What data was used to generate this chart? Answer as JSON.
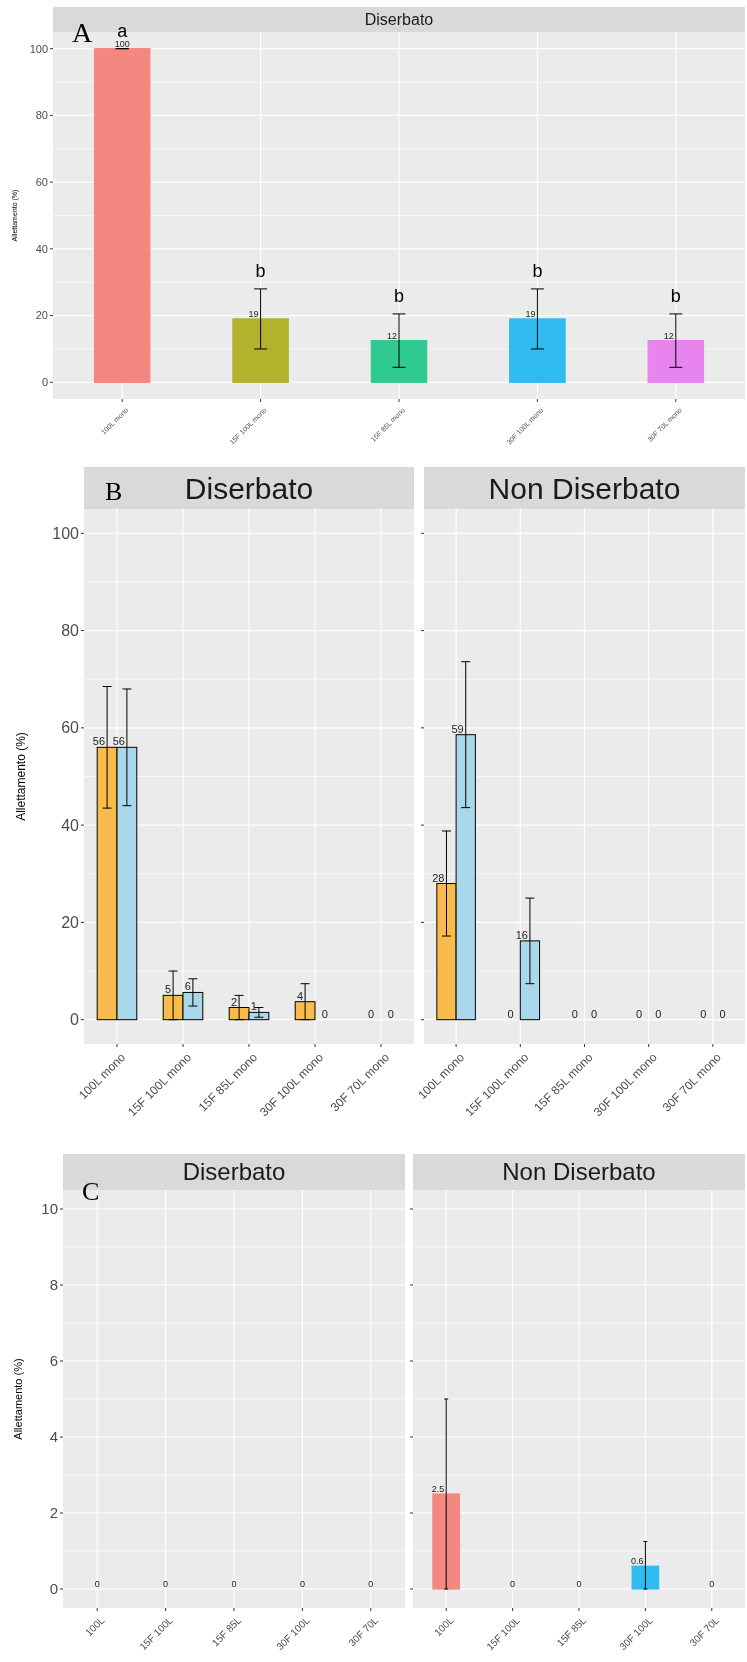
{
  "chart_data": [
    {
      "type": "bar",
      "title": "Diserbato",
      "ylabel": "Allettamento (%)",
      "categories": [
        "100L mono",
        "15F 100L mono",
        "15F 85L mono",
        "30F 100L mono",
        "30F 70L mono"
      ],
      "values": [
        100,
        19,
        12.5,
        19,
        12.5
      ],
      "colors": [
        "#f4877f",
        "#b2b22d",
        "#2fca91",
        "#2fbbf0",
        "#e884ee"
      ],
      "errors": [
        0,
        9,
        8,
        9,
        8
      ],
      "value_labels": [
        "100",
        "19",
        "12",
        "19",
        "12"
      ],
      "ylim": [
        -5,
        105
      ],
      "yticks": [
        0,
        20,
        40,
        60,
        80,
        100
      ],
      "grid": true,
      "annotations": [
        "A",
        {
          "text": "a",
          "x": "100L mono",
          "y": 100
        },
        {
          "text": "b",
          "x": "15F 100L mono",
          "y": 28
        },
        {
          "text": "b",
          "x": "15F 85L mono",
          "y": 20.5
        },
        {
          "text": "b",
          "x": "30F 100L mono",
          "y": 28
        },
        {
          "text": "b",
          "x": "30F 70L mono",
          "y": 20.5
        }
      ]
    },
    {
      "type": "bar",
      "title": "Diserbato",
      "ylabel": "Allettamento (%)",
      "categories": [
        "100L mono",
        "15F 100L mono",
        "15F 85L mono",
        "30F 100L mono",
        "30F 70L mono"
      ],
      "series": [
        {
          "color": "#f9bb4b",
          "values": [
            56,
            5,
            2.5,
            3.7,
            0
          ],
          "errors": [
            12.5,
            5,
            2.5,
            3.7,
            null
          ],
          "value_labels": [
            "56",
            "5",
            "2",
            "4",
            "0"
          ]
        },
        {
          "color": "#a8d8ea",
          "values": [
            56,
            5.6,
            1.5,
            0,
            0
          ],
          "errors": [
            12,
            2.8,
            1,
            null,
            null
          ],
          "value_labels": [
            "56",
            "6",
            "1",
            "0",
            "0"
          ]
        }
      ],
      "ylim": [
        -5,
        105
      ],
      "yticks": [
        0,
        20,
        40,
        60,
        80,
        100
      ],
      "grid": true,
      "annotations": [
        "B"
      ]
    },
    {
      "type": "bar",
      "title": "Non Diserbato",
      "categories": [
        "100L mono",
        "15F 100L mono",
        "15F 85L mono",
        "30F 100L mono",
        "30F 70L mono"
      ],
      "series": [
        {
          "color": "#f9bb4b",
          "values": [
            28,
            0,
            0,
            0,
            0
          ],
          "errors": [
            10.8,
            null,
            null,
            null,
            null
          ],
          "value_labels": [
            "28",
            "0",
            "0",
            "0",
            "0"
          ]
        },
        {
          "color": "#a8d8ea",
          "values": [
            58.6,
            16.2,
            0,
            0,
            0
          ],
          "errors": [
            15,
            8.8,
            null,
            null,
            null
          ],
          "value_labels": [
            "59",
            "16",
            "0",
            "0",
            "0"
          ]
        }
      ],
      "ylim": [
        -5,
        105
      ],
      "yticks": [
        0,
        20,
        40,
        60,
        80,
        100
      ],
      "grid": true,
      "tick_labels": "x"
    },
    {
      "type": "bar",
      "title": "Diserbato",
      "ylabel": "Allettamento (%)",
      "categories": [
        "100L",
        "15F 100L",
        "15F 85L",
        "30F 100L",
        "30F 70L"
      ],
      "values": [
        0,
        0,
        0,
        0,
        0
      ],
      "colors": [
        "#f4877f",
        "#b2b22d",
        "#2fca91",
        "#2fbbf0",
        "#e884ee"
      ],
      "data_labels": true,
      "ylim": [
        -0.5,
        10.5
      ],
      "yticks": [
        0,
        2,
        4,
        6,
        8,
        10
      ],
      "grid": true,
      "annotations": [
        "C"
      ]
    },
    {
      "type": "bar",
      "title": "Non Diserbato",
      "categories": [
        "100L",
        "15F 100L",
        "15F 85L",
        "30F 100L",
        "30F 70L"
      ],
      "values": [
        2.5,
        0,
        0,
        0.6,
        0
      ],
      "colors": [
        "#f4877f",
        "#b2b22d",
        "#2fca91",
        "#2fbbf0",
        "#e884ee"
      ],
      "errors": [
        [
          0,
          5
        ],
        null,
        null,
        [
          0,
          1.25
        ],
        null
      ],
      "data_labels": true,
      "ylim": [
        -0.5,
        10.5
      ],
      "yticks": [
        0,
        2,
        4,
        6,
        8,
        10
      ],
      "grid": true,
      "tick_labels": "x"
    }
  ]
}
